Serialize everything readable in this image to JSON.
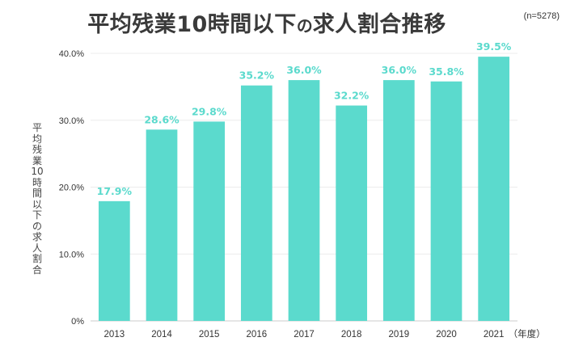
{
  "title_main": "平均残業10時間以下",
  "title_particle": "の",
  "title_rest": "求人割合推移",
  "sample_size": "(n=5278)",
  "x_unit": "（年度）",
  "bar_color": "#5bdacd",
  "label_color": "#5bdacd",
  "chart_data": {
    "type": "bar",
    "title": "平均残業10時間以下の求人割合推移",
    "xlabel": "（年度）",
    "ylabel": "平均残業10時間以下の求人割合",
    "categories": [
      "2013",
      "2014",
      "2015",
      "2016",
      "2017",
      "2018",
      "2019",
      "2020",
      "2021"
    ],
    "values": [
      17.9,
      28.6,
      29.8,
      35.2,
      36.0,
      32.2,
      36.0,
      35.8,
      39.5
    ],
    "data_labels": [
      "17.9%",
      "28.6%",
      "29.8%",
      "35.2%",
      "36.0%",
      "32.2%",
      "36.0%",
      "35.8%",
      "39.5%"
    ],
    "ylim": [
      0,
      40
    ],
    "yticks": [
      0,
      10,
      20,
      30,
      40
    ],
    "ytick_labels": [
      "0%",
      "10.0%",
      "20.0%",
      "30.0%",
      "40.0%"
    ],
    "grid": true,
    "legend": "none"
  }
}
